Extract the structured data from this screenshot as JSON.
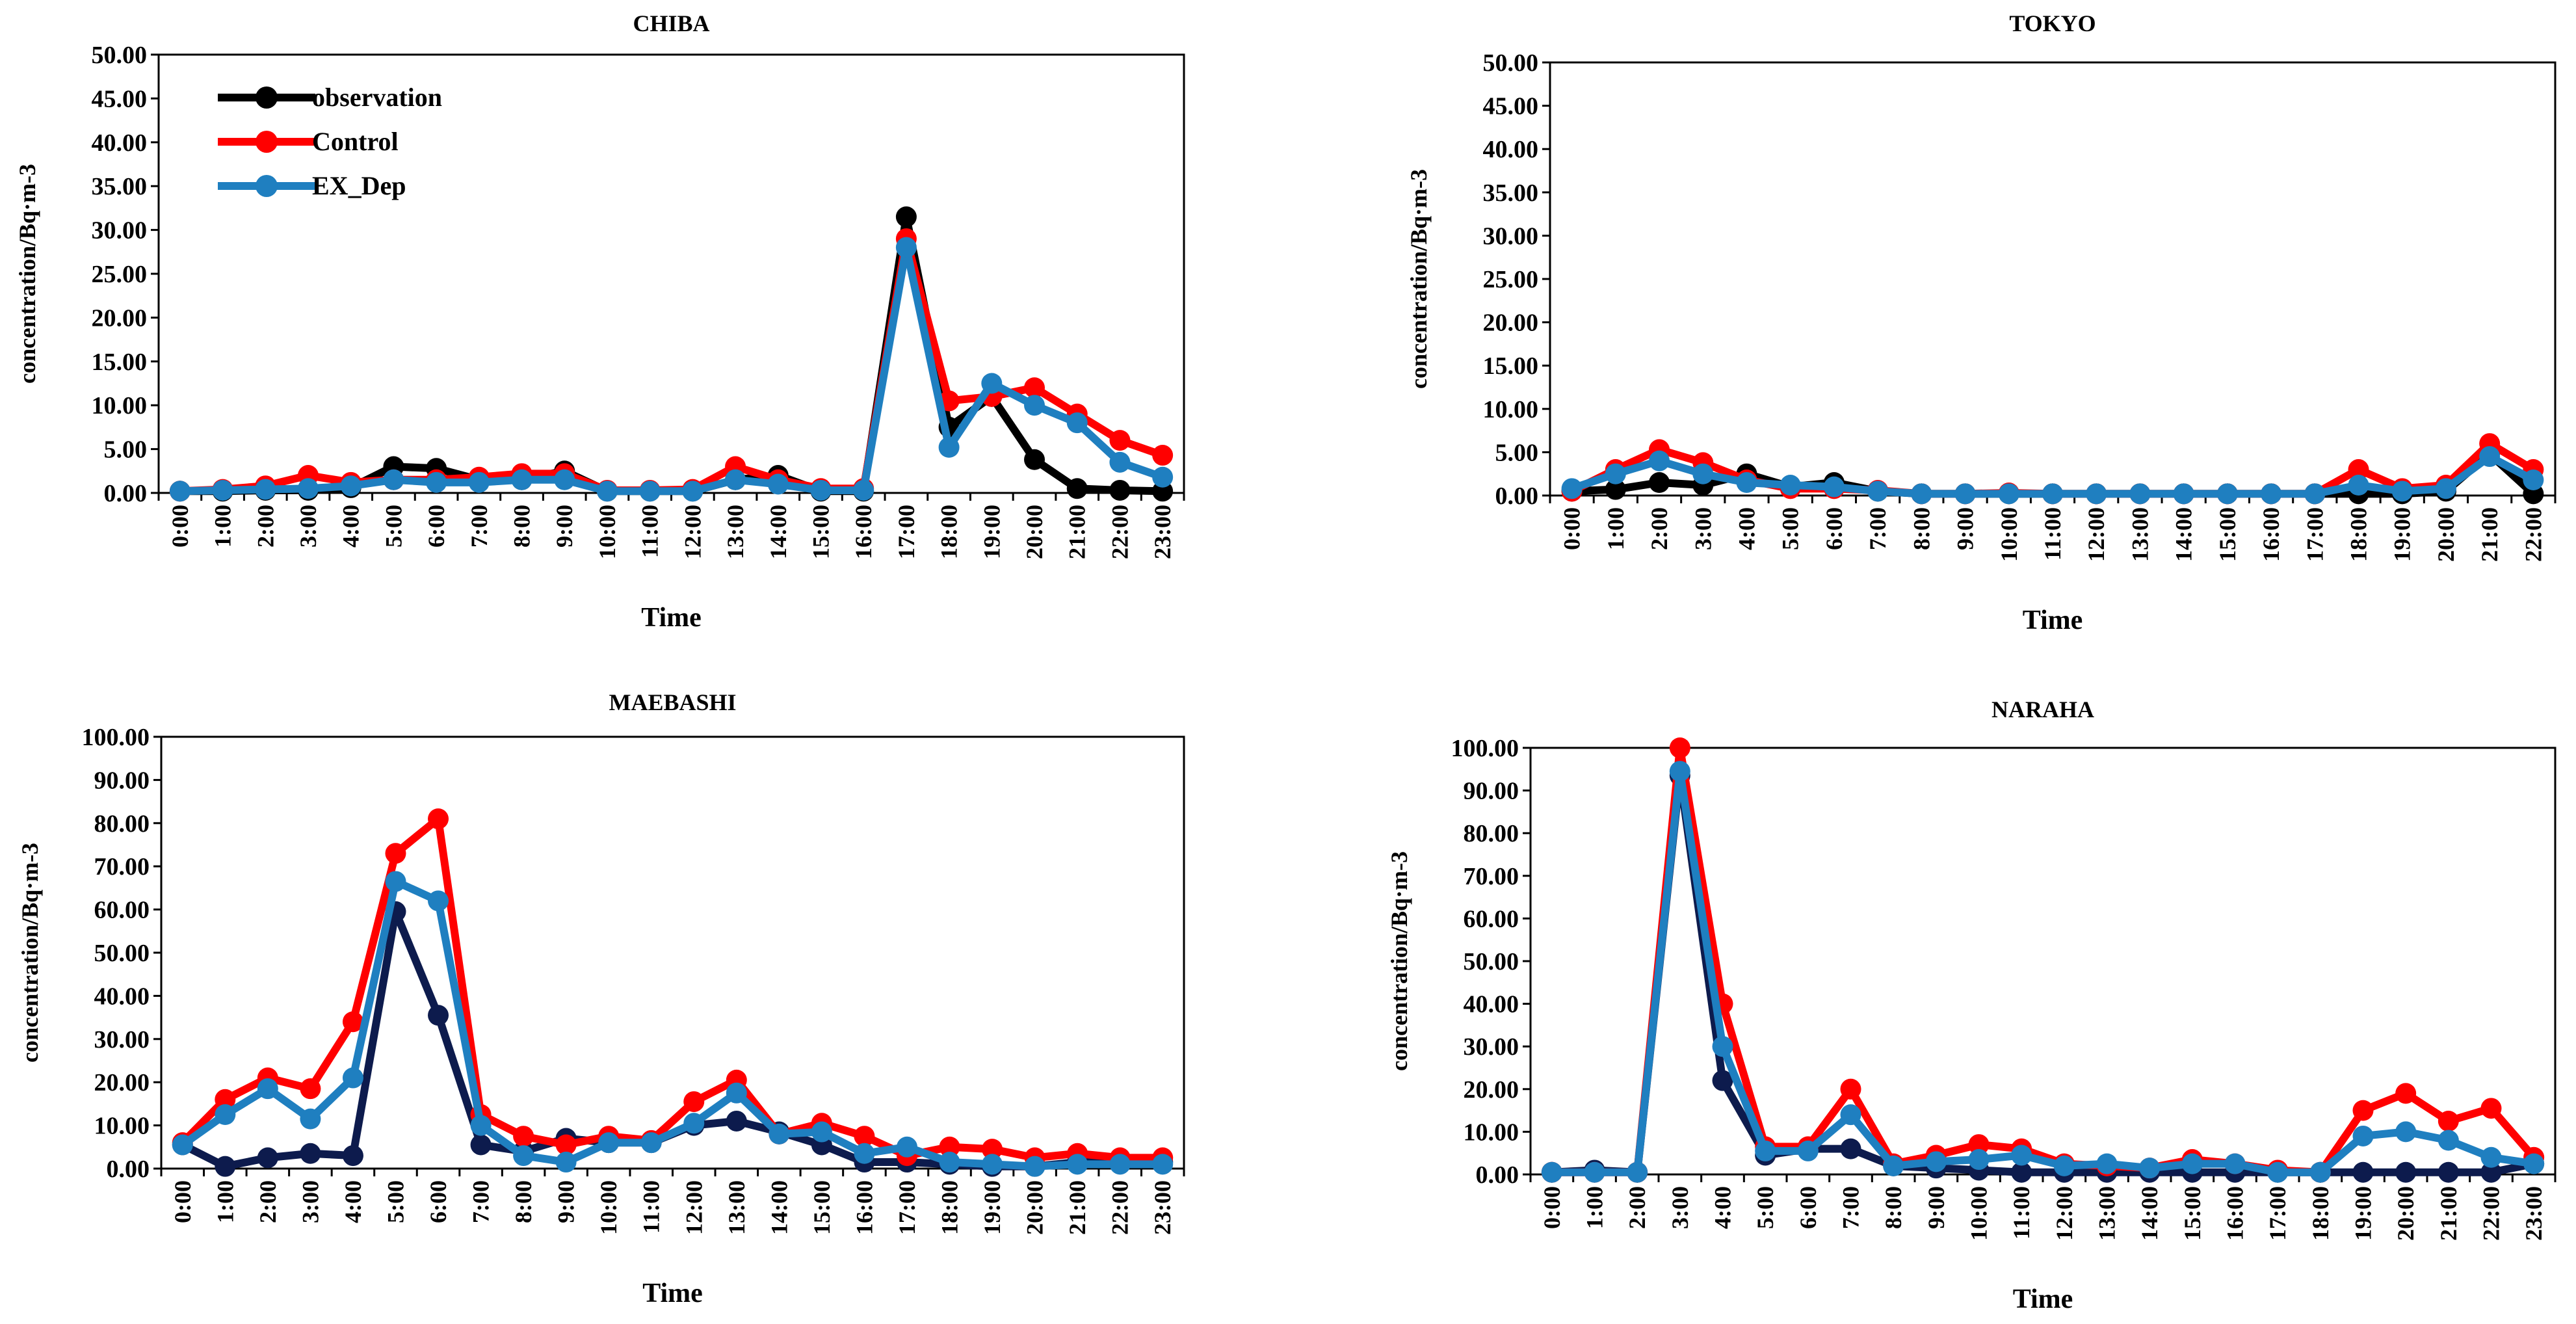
{
  "figure": {
    "panels": [
      "CHIBA",
      "TOKYO",
      "MAEBASHI",
      "NARAHA"
    ]
  },
  "colors": {
    "observation": "#000000",
    "Control": "#ff0000",
    "EX_Dep": "#1f7fc0",
    "axis": "#000000"
  },
  "chart_data": [
    {
      "type": "line",
      "title": "CHIBA",
      "xlabel": "Time",
      "ylabel": "concentration/Bq·m-3",
      "ylim": [
        0,
        50
      ],
      "yticks": [
        "0.00",
        "5.00",
        "10.00",
        "15.00",
        "20.00",
        "25.00",
        "30.00",
        "35.00",
        "40.00",
        "45.00",
        "50.00"
      ],
      "grid": false,
      "legend": "top-left",
      "categories": [
        "0:00",
        "1:00",
        "2:00",
        "3:00",
        "4:00",
        "5:00",
        "6:00",
        "7:00",
        "8:00",
        "9:00",
        "10:00",
        "11:00",
        "12:00",
        "13:00",
        "14:00",
        "15:00",
        "16:00",
        "17:00",
        "18:00",
        "19:00",
        "20:00",
        "21:00",
        "22:00",
        "23:00"
      ],
      "series": [
        {
          "name": "observation",
          "color": "#000000",
          "values": [
            0.2,
            0.2,
            0.3,
            0.3,
            0.6,
            3.0,
            2.8,
            1.5,
            1.5,
            2.5,
            0.2,
            0.2,
            0.2,
            1.5,
            2.0,
            0.2,
            0.2,
            31.5,
            7.5,
            11.0,
            3.8,
            0.5,
            0.3,
            0.2
          ]
        },
        {
          "name": "Control",
          "color": "#ff0000",
          "values": [
            0.2,
            0.4,
            0.8,
            2.0,
            1.2,
            1.5,
            1.5,
            1.8,
            2.2,
            2.2,
            0.3,
            0.3,
            0.4,
            3.0,
            1.5,
            0.5,
            0.5,
            29.0,
            10.5,
            11.0,
            12.0,
            9.0,
            6.0,
            4.3
          ]
        },
        {
          "name": "EX_Dep",
          "color": "#1f7fc0",
          "values": [
            0.2,
            0.3,
            0.4,
            0.5,
            0.8,
            1.5,
            1.2,
            1.2,
            1.5,
            1.5,
            0.2,
            0.2,
            0.2,
            1.5,
            1.0,
            0.3,
            0.3,
            28.0,
            5.2,
            12.5,
            10.0,
            8.0,
            3.5,
            1.8
          ]
        }
      ]
    },
    {
      "type": "line",
      "title": "TOKYO",
      "xlabel": "Time",
      "ylabel": "concentration/Bq·m-3",
      "ylim": [
        0,
        50
      ],
      "yticks": [
        "0.00",
        "5.00",
        "10.00",
        "15.00",
        "20.00",
        "25.00",
        "30.00",
        "35.00",
        "40.00",
        "45.00",
        "50.00"
      ],
      "grid": false,
      "categories": [
        "0:00",
        "1:00",
        "2:00",
        "3:00",
        "4:00",
        "5:00",
        "6:00",
        "7:00",
        "8:00",
        "9:00",
        "10:00",
        "11:00",
        "12:00",
        "13:00",
        "14:00",
        "15:00",
        "16:00",
        "17:00",
        "18:00",
        "19:00",
        "20:00",
        "21:00",
        "22:00"
      ],
      "series": [
        {
          "name": "observation",
          "color": "#000000",
          "values": [
            0.5,
            0.7,
            1.5,
            1.2,
            2.5,
            1.0,
            1.5,
            0.5,
            0.2,
            0.2,
            0.2,
            0.2,
            0.2,
            0.2,
            0.2,
            0.2,
            0.2,
            0.2,
            0.2,
            0.2,
            0.5,
            4.8,
            0.2
          ]
        },
        {
          "name": "Control",
          "color": "#ff0000",
          "values": [
            0.5,
            3.0,
            5.3,
            3.8,
            1.8,
            0.8,
            0.8,
            0.6,
            0.2,
            0.2,
            0.3,
            0.2,
            0.2,
            0.2,
            0.2,
            0.2,
            0.2,
            0.2,
            3.0,
            0.8,
            1.2,
            6.0,
            3.0
          ]
        },
        {
          "name": "EX_Dep",
          "color": "#1f7fc0",
          "values": [
            0.8,
            2.5,
            4.0,
            2.5,
            1.5,
            1.2,
            1.0,
            0.5,
            0.2,
            0.2,
            0.2,
            0.2,
            0.2,
            0.2,
            0.2,
            0.2,
            0.2,
            0.2,
            1.2,
            0.5,
            0.8,
            4.5,
            1.8
          ]
        }
      ]
    },
    {
      "type": "line",
      "title": "MAEBASHI",
      "xlabel": "Time",
      "ylabel": "concentration/Bq·m-3",
      "ylim": [
        0,
        100
      ],
      "yticks": [
        "0.00",
        "10.00",
        "20.00",
        "30.00",
        "40.00",
        "50.00",
        "60.00",
        "70.00",
        "80.00",
        "90.00",
        "100.00"
      ],
      "grid": false,
      "categories": [
        "0:00",
        "1:00",
        "2:00",
        "3:00",
        "4:00",
        "5:00",
        "6:00",
        "7:00",
        "8:00",
        "9:00",
        "10:00",
        "11:00",
        "12:00",
        "13:00",
        "14:00",
        "15:00",
        "16:00",
        "17:00",
        "18:00",
        "19:00",
        "20:00",
        "21:00",
        "22:00",
        "23:00"
      ],
      "series": [
        {
          "name": "observation",
          "color": "#0d1b4d",
          "values": [
            5.5,
            0.5,
            2.5,
            3.5,
            3.0,
            59.5,
            35.5,
            5.5,
            4.0,
            7.0,
            6.0,
            6.0,
            10.0,
            11.0,
            8.5,
            5.5,
            1.5,
            1.5,
            1.0,
            0.5,
            0.5,
            1.5,
            1.5,
            1.5
          ]
        },
        {
          "name": "Control",
          "color": "#ff0000",
          "values": [
            6.0,
            16.0,
            21.0,
            18.5,
            34.0,
            73.0,
            81.0,
            12.5,
            7.5,
            5.5,
            7.5,
            6.5,
            15.5,
            20.5,
            8.0,
            10.5,
            7.5,
            3.0,
            5.0,
            4.5,
            2.5,
            3.5,
            2.5,
            2.5
          ]
        },
        {
          "name": "EX_Dep",
          "color": "#1f7fc0",
          "values": [
            5.5,
            12.5,
            18.5,
            11.5,
            21.0,
            66.5,
            62.0,
            10.0,
            3.0,
            1.5,
            6.0,
            6.0,
            10.5,
            17.5,
            8.0,
            8.5,
            3.5,
            5.0,
            1.5,
            1.0,
            0.5,
            1.0,
            1.0,
            1.0
          ]
        }
      ]
    },
    {
      "type": "line",
      "title": "NARAHA",
      "xlabel": "Time",
      "ylabel": "concentration/Bq·m-3",
      "ylim": [
        0,
        100
      ],
      "yticks": [
        "0.00",
        "10.00",
        "20.00",
        "30.00",
        "40.00",
        "50.00",
        "60.00",
        "70.00",
        "80.00",
        "90.00",
        "100.00"
      ],
      "grid": false,
      "categories": [
        "0:00",
        "1:00",
        "2:00",
        "3:00",
        "4:00",
        "5:00",
        "6:00",
        "7:00",
        "8:00",
        "9:00",
        "10:00",
        "11:00",
        "12:00",
        "13:00",
        "14:00",
        "15:00",
        "16:00",
        "17:00",
        "18:00",
        "19:00",
        "20:00",
        "21:00",
        "22:00",
        "23:00"
      ],
      "series": [
        {
          "name": "observation",
          "color": "#0d1b4d",
          "values": [
            0.5,
            1.0,
            0.5,
            93.5,
            22.0,
            4.5,
            6.0,
            6.0,
            2.0,
            1.5,
            1.0,
            0.5,
            0.5,
            0.5,
            0.5,
            0.5,
            0.5,
            0.5,
            0.5,
            0.5,
            0.5,
            0.5,
            0.5,
            2.5
          ]
        },
        {
          "name": "Control",
          "color": "#ff0000",
          "values": [
            0.5,
            0.5,
            0.5,
            100.0,
            40.0,
            6.5,
            6.5,
            20.0,
            2.5,
            4.5,
            7.0,
            6.0,
            2.5,
            2.0,
            1.5,
            3.5,
            2.5,
            1.0,
            0.5,
            15.0,
            19.0,
            12.5,
            15.5,
            4.0
          ]
        },
        {
          "name": "EX_Dep",
          "color": "#1f7fc0",
          "values": [
            0.5,
            0.5,
            0.5,
            94.5,
            30.0,
            5.5,
            5.5,
            14.0,
            2.0,
            3.0,
            3.5,
            4.5,
            2.0,
            2.5,
            1.5,
            2.5,
            2.5,
            0.5,
            0.5,
            9.0,
            10.0,
            8.0,
            4.0,
            2.5
          ]
        }
      ]
    }
  ]
}
